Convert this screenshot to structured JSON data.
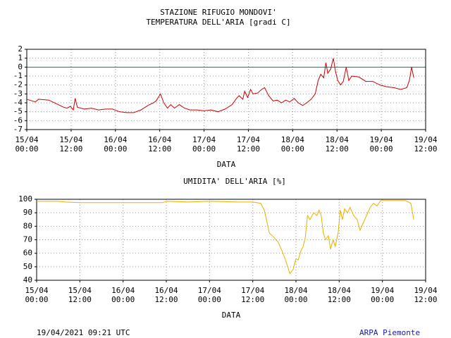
{
  "chart_data": [
    {
      "type": "line",
      "title": "STAZIONE RIFUGIO MONDOVI'",
      "subtitle": "TEMPERATURA DELL'ARIA [gradi C]",
      "x_label": "DATA",
      "color": "#cc0000",
      "grid": true,
      "reference_line": 0,
      "reference_color": "#008080",
      "x": [
        0,
        2.3,
        3.2,
        6,
        8,
        10,
        10.9,
        11.8,
        12.6,
        13.1,
        13.7,
        15.6,
        17.5,
        19.4,
        21.3,
        23.2,
        25.1,
        27,
        29,
        30.9,
        32.8,
        34.3,
        35,
        36.2,
        37.1,
        38.1,
        39,
        40,
        41.3,
        42.7,
        44.2,
        46.1,
        48,
        49.9,
        51.8,
        53.7,
        55.6,
        56.8,
        57.5,
        58.5,
        59,
        59.8,
        60.6,
        61.3,
        62.5,
        63.6,
        64.4,
        65.5,
        66.7,
        67.8,
        69,
        70.1,
        71.2,
        72.4,
        73.5,
        74.7,
        75.8,
        77,
        78.1,
        78.9,
        79.6,
        80.4,
        81,
        81.5,
        82.3,
        83,
        83.6,
        84.2,
        85,
        85.7,
        86.5,
        87.2,
        88,
        89.9,
        91.8,
        93.7,
        95.6,
        97.5,
        99.4,
        101.3,
        102.9,
        103.6,
        104.2,
        104.8
      ],
      "values": [
        -3.6,
        -3.9,
        -3.6,
        -3.7,
        -4.1,
        -4.5,
        -4.6,
        -4.4,
        -4.8,
        -3.5,
        -4.5,
        -4.7,
        -4.6,
        -4.8,
        -4.7,
        -4.7,
        -5.0,
        -5.1,
        -5.1,
        -4.8,
        -4.3,
        -4.0,
        -3.8,
        -3.0,
        -4.0,
        -4.6,
        -4.2,
        -4.6,
        -4.2,
        -4.6,
        -4.8,
        -4.8,
        -4.9,
        -4.8,
        -5.0,
        -4.7,
        -4.2,
        -3.5,
        -3.2,
        -3.6,
        -2.7,
        -3.4,
        -2.5,
        -3.0,
        -2.9,
        -2.5,
        -2.3,
        -3.2,
        -3.8,
        -3.7,
        -4.0,
        -3.7,
        -3.9,
        -3.5,
        -4.0,
        -4.3,
        -4.0,
        -3.6,
        -3.0,
        -1.5,
        -0.8,
        -1.2,
        0.5,
        -0.7,
        -0.2,
        1.0,
        -0.5,
        -1.5,
        -2.0,
        -1.6,
        0.0,
        -1.5,
        -1.0,
        -1.1,
        -1.6,
        -1.6,
        -2.0,
        -2.2,
        -2.3,
        -2.5,
        -2.3,
        -1.5,
        0.0,
        -1.2
      ],
      "xlim": [
        0,
        108
      ],
      "xticks": [
        {
          "value": 0,
          "label": "15/04\n00:00"
        },
        {
          "value": 12,
          "label": "15/04\n12:00"
        },
        {
          "value": 24,
          "label": "16/04\n00:00"
        },
        {
          "value": 36,
          "label": "16/04\n12:00"
        },
        {
          "value": 48,
          "label": "17/04\n00:00"
        },
        {
          "value": 60,
          "label": "17/04\n12:00"
        },
        {
          "value": 72,
          "label": "18/04\n00:00"
        },
        {
          "value": 84,
          "label": "18/04\n12:00"
        },
        {
          "value": 96,
          "label": "19/04\n00:00"
        },
        {
          "value": 108,
          "label": "19/04\n12:00"
        }
      ],
      "ylim": [
        -7,
        2
      ],
      "yticks": [
        -7,
        -6,
        -5,
        -4,
        -3,
        -2,
        -1,
        0,
        1,
        2
      ]
    },
    {
      "type": "line",
      "title": "UMIDITA' DELL'ARIA [%]",
      "x_label": "DATA",
      "color": "#e8b000",
      "grid": true,
      "x": [
        0,
        6,
        8,
        12,
        20,
        30,
        35,
        36,
        42,
        48,
        56,
        60,
        62.2,
        63.2,
        63.8,
        64.6,
        65.8,
        67.1,
        68.1,
        69.1,
        69.7,
        70.3,
        71.2,
        72,
        72.6,
        73.4,
        74,
        74.6,
        75.2,
        75.9,
        76.9,
        77.8,
        78.4,
        79,
        79.6,
        80.2,
        81,
        81.6,
        82.3,
        82.9,
        83.7,
        84.3,
        84.9,
        85.5,
        86.3,
        87,
        88,
        89,
        89.8,
        90.6,
        91.6,
        92.6,
        93.5,
        94.5,
        95.5,
        97.5,
        99.4,
        102.4,
        103.9,
        104.7
      ],
      "values": [
        98.5,
        98.5,
        98,
        97.5,
        97.5,
        97.5,
        97.5,
        98.5,
        98,
        98.5,
        98,
        98,
        97,
        92,
        85,
        75,
        72,
        68,
        62,
        55,
        50,
        45,
        48,
        56,
        55,
        62,
        65,
        72,
        88,
        85,
        90,
        88,
        92,
        88,
        75,
        70,
        73,
        63,
        70,
        65,
        75,
        92,
        85,
        93,
        90,
        94,
        88,
        85,
        77,
        82,
        88,
        94,
        97,
        95,
        99,
        99,
        99,
        99,
        97,
        85
      ],
      "xlim": [
        0,
        108
      ],
      "xticks": [
        {
          "value": 0,
          "label": "15/04\n00:00"
        },
        {
          "value": 12,
          "label": "15/04\n12:00"
        },
        {
          "value": 24,
          "label": "16/04\n00:00"
        },
        {
          "value": 36,
          "label": "16/04\n12:00"
        },
        {
          "value": 48,
          "label": "17/04\n00:00"
        },
        {
          "value": 60,
          "label": "17/04\n12:00"
        },
        {
          "value": 72,
          "label": "18/04\n00:00"
        },
        {
          "value": 84,
          "label": "18/04\n12:00"
        },
        {
          "value": 96,
          "label": "19/04\n00:00"
        },
        {
          "value": 108,
          "label": "19/04\n12:00"
        }
      ],
      "ylim": [
        40,
        100
      ],
      "yticks": [
        40,
        50,
        60,
        70,
        80,
        90,
        100
      ]
    }
  ],
  "footer": {
    "timestamp": "19/04/2021 09:21 UTC",
    "source": "ARPA Piemonte"
  }
}
